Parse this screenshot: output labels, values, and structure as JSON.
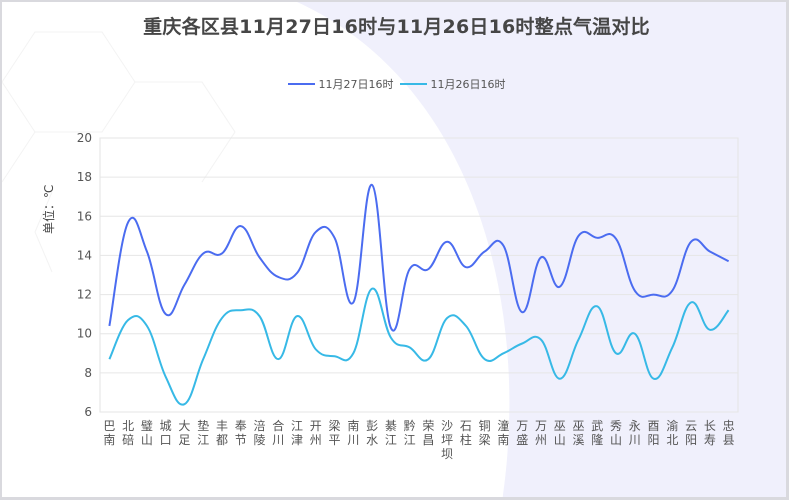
{
  "title": "重庆各区县11月27日16时与11月26日16时整点气温对比",
  "legend": [
    {
      "label": "11月27日16时",
      "color": "#4b6cf0"
    },
    {
      "label": "11月26日16时",
      "color": "#37b9e6"
    }
  ],
  "y_axis_label": "单位：℃",
  "chart_data": {
    "type": "line",
    "title": "重庆各区县11月27日16时与11月26日16时整点气温对比",
    "xlabel": "",
    "ylabel": "单位：℃",
    "ylim": [
      6,
      20
    ],
    "yticks": [
      6,
      8,
      10,
      12,
      14,
      16,
      18,
      20
    ],
    "grid": true,
    "legend_position": "top",
    "smooth": true,
    "categories": [
      "巴南",
      "北碚",
      "璧山",
      "城口",
      "大足",
      "垫江",
      "丰都",
      "奉节",
      "涪陵",
      "合川",
      "江津",
      "开州",
      "梁平",
      "南川",
      "彭水",
      "綦江",
      "黔江",
      "荣昌",
      "沙坪坝",
      "石柱",
      "铜梁",
      "潼南",
      "万盛",
      "万州",
      "巫山",
      "巫溪",
      "武隆",
      "秀山",
      "永川",
      "酉阳",
      "渝北",
      "云阳",
      "长寿",
      "忠县"
    ],
    "series": [
      {
        "name": "11月27日16时",
        "color": "#4b6cf0",
        "values": [
          10.4,
          15.7,
          14.2,
          11.0,
          12.5,
          14.1,
          14.1,
          15.5,
          13.9,
          12.9,
          13.1,
          15.2,
          14.9,
          11.6,
          17.6,
          10.3,
          13.3,
          13.3,
          14.7,
          13.4,
          14.2,
          14.5,
          11.1,
          13.9,
          12.4,
          15.0,
          14.9,
          14.85,
          12.2,
          12.0,
          12.2,
          14.7,
          14.2,
          13.7
        ]
      },
      {
        "name": "11月26日16时",
        "color": "#37b9e6",
        "values": [
          8.7,
          10.7,
          10.4,
          7.8,
          6.4,
          8.7,
          10.8,
          11.2,
          10.9,
          8.7,
          10.9,
          9.2,
          8.85,
          9.0,
          12.3,
          9.8,
          9.3,
          8.7,
          10.8,
          10.4,
          8.7,
          9.0,
          9.5,
          9.7,
          7.7,
          9.7,
          11.4,
          9.0,
          10.0,
          7.7,
          9.3,
          11.6,
          10.2,
          11.2
        ]
      }
    ]
  }
}
